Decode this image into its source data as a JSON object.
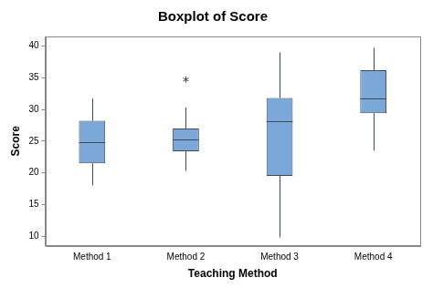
{
  "chart_data": {
    "type": "boxplot",
    "title": "Boxplot of Score",
    "x_label": "Teaching Method",
    "y_label": "Score",
    "categories": [
      "Method 1",
      "Method 2",
      "Method 3",
      "Method 4"
    ],
    "values": [
      {
        "min": 18,
        "q1": 21.5,
        "median": 24.8,
        "q3": 28.2,
        "max": 31.7,
        "outliers": []
      },
      {
        "min": 20.3,
        "q1": 23.4,
        "median": 25.2,
        "q3": 27,
        "max": 30.3,
        "outliers": [
          34.7
        ]
      },
      {
        "min": 9.8,
        "q1": 19.5,
        "median": 28.2,
        "q3": 31.8,
        "max": 39,
        "outliers": []
      },
      {
        "min": 23.5,
        "q1": 29.4,
        "median": 31.7,
        "q3": 36.2,
        "max": 39.7,
        "outliers": []
      }
    ],
    "color": "#7ba7d9",
    "marker": "asterisk",
    "ylim": [
      8.5,
      41.5
    ],
    "yticks": [
      10,
      15,
      20,
      25,
      30,
      35,
      40
    ],
    "grid": false
  }
}
